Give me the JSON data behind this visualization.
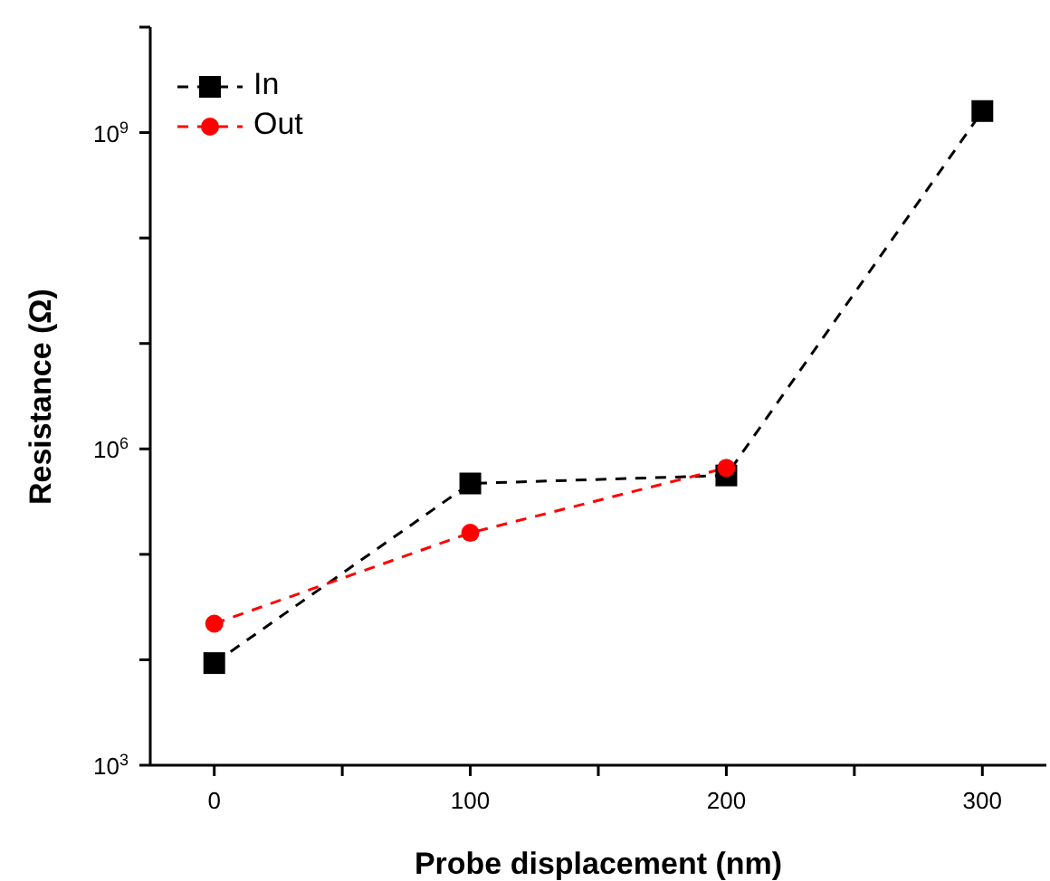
{
  "chart_data": {
    "type": "line",
    "xlabel": "Probe displacement (nm)",
    "ylabel": "Resistance (Ω)",
    "x": [
      0,
      100,
      200,
      300
    ],
    "series": [
      {
        "name": "In",
        "color": "#000000",
        "marker": "square",
        "values": [
          9300,
          470000,
          560000,
          1600000000
        ]
      },
      {
        "name": "Out",
        "color": "#ff0000",
        "marker": "circle",
        "values": [
          22000,
          160000,
          660000,
          null
        ]
      }
    ],
    "xlim": [
      -25,
      325
    ],
    "xticks": [
      0,
      {
        "value": 50,
        "label": null
      },
      100,
      {
        "value": 150,
        "label": null
      },
      200,
      {
        "value": 250,
        "label": null
      },
      300
    ],
    "ylim": [
      1000,
      10000000000
    ],
    "log": "y",
    "yticks": [
      {
        "value": 1000,
        "label": "10$^{3}$"
      },
      {
        "value": 10000,
        "label": null
      },
      {
        "value": 100000,
        "label": null
      },
      {
        "value": 1000000,
        "label": "10$^{6}$"
      },
      {
        "value": 10000000,
        "label": null
      },
      {
        "value": 100000000,
        "label": null
      },
      {
        "value": 1000000000,
        "label": "10$^{9}$"
      },
      {
        "value": 10000000000,
        "label": null
      }
    ],
    "line_style": "dashed",
    "legend": "top left",
    "grid": false
  }
}
